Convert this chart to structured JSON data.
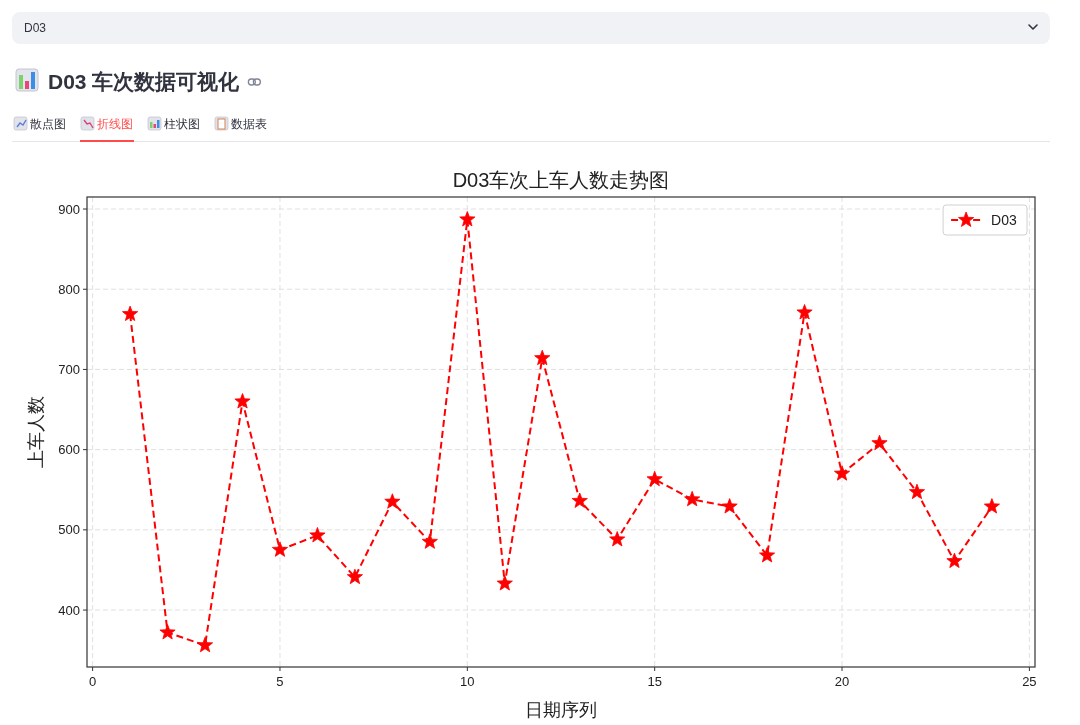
{
  "chart_data": {
    "type": "line",
    "title": "D03车次上车人数走势图",
    "xlabel": "日期序列",
    "ylabel": "上车人数",
    "annotations": [
      "D03",
      "D03 车次数据可视化",
      "散点图",
      "折线图",
      "柱状图",
      "数据表"
    ],
    "x": [
      1,
      2,
      3,
      4,
      5,
      6,
      7,
      8,
      9,
      10,
      11,
      12,
      13,
      14,
      15,
      16,
      17,
      18,
      19,
      20,
      21,
      22,
      23,
      24
    ],
    "series": [
      {
        "name": "D03",
        "color": "#ff0000",
        "values": [
          769,
          372,
          356,
          660,
          475,
          493,
          441,
          535,
          485,
          887,
          433,
          714,
          536,
          488,
          563,
          538,
          529,
          468,
          771,
          570,
          608,
          547,
          461,
          529
        ]
      }
    ],
    "xlim": [
      -0.15,
      25.15
    ],
    "ylim": [
      329,
      915
    ],
    "xticks": [
      0,
      5,
      10,
      15,
      20,
      25
    ],
    "yticks": [
      400,
      500,
      600,
      700,
      800,
      900
    ],
    "grid": true,
    "legend": "top right",
    "marker": "star",
    "line_style": "dashed"
  }
}
